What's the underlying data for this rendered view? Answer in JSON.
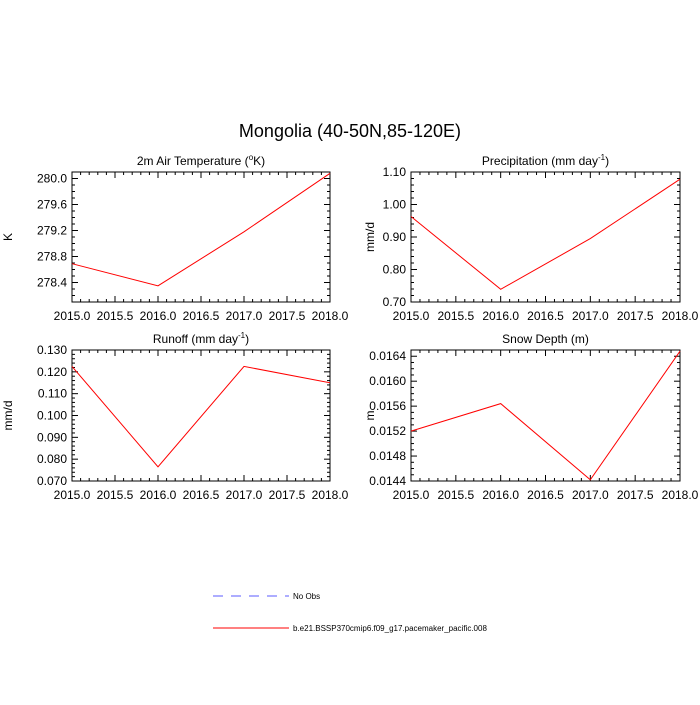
{
  "figure": {
    "title": "Mongolia (40-50N,85-120E)"
  },
  "legend": {
    "entries": [
      {
        "label": "No Obs",
        "color": "#5b5bff",
        "style": "dashed"
      },
      {
        "label": "b.e21.BSSP370cmip6.f09_g17.pacemaker_pacific.008",
        "color": "#ff0000",
        "style": "solid"
      }
    ]
  },
  "chart_data": [
    {
      "type": "line",
      "title": "2m Air Temperature (",
      "title_sup": "o",
      "title_after": "K)",
      "ylabel": "K",
      "xlim": [
        2015.0,
        2018.0
      ],
      "ylim": [
        278.1,
        280.1
      ],
      "x_major_ticks": [
        2015.0,
        2015.5,
        2016.0,
        2016.5,
        2017.0,
        2017.5,
        2018.0
      ],
      "x_tick_labels": [
        "2015.0",
        "2015.5",
        "2016.0",
        "2016.5",
        "2017.0",
        "2017.5",
        "2018.0"
      ],
      "y_major_ticks": [
        278.4,
        278.8,
        279.2,
        279.6,
        280.0
      ],
      "y_tick_labels": [
        "278.4",
        "278.8",
        "279.2",
        "279.6",
        "280.0"
      ],
      "y_minor_step": 0.1,
      "series": [
        {
          "color": "#ff0000",
          "x": [
            2015,
            2016,
            2017,
            2018
          ],
          "y": [
            278.69,
            278.35,
            279.18,
            280.08
          ]
        }
      ]
    },
    {
      "type": "line",
      "title": "Precipitation (mm day",
      "title_sup": "-1",
      "title_after": ")",
      "ylabel": "mm/d",
      "xlim": [
        2015.0,
        2018.0
      ],
      "ylim": [
        0.7,
        1.1
      ],
      "x_major_ticks": [
        2015.0,
        2015.5,
        2016.0,
        2016.5,
        2017.0,
        2017.5,
        2018.0
      ],
      "x_tick_labels": [
        "2015.0",
        "2015.5",
        "2016.0",
        "2016.5",
        "2017.0",
        "2017.5",
        "2018.0"
      ],
      "y_major_ticks": [
        0.7,
        0.8,
        0.9,
        1.0,
        1.1
      ],
      "y_tick_labels": [
        "0.70",
        "0.80",
        "0.90",
        "1.00",
        "1.10"
      ],
      "y_minor_step": 0.02,
      "series": [
        {
          "color": "#ff0000",
          "x": [
            2015,
            2016,
            2017,
            2018
          ],
          "y": [
            0.963,
            0.739,
            0.895,
            1.078
          ]
        }
      ]
    },
    {
      "type": "line",
      "title": "Runoff (mm day",
      "title_sup": "-1",
      "title_after": ")",
      "ylabel": "mm/d",
      "xlim": [
        2015.0,
        2018.0
      ],
      "ylim": [
        0.07,
        0.13
      ],
      "x_major_ticks": [
        2015.0,
        2015.5,
        2016.0,
        2016.5,
        2017.0,
        2017.5,
        2018.0
      ],
      "x_tick_labels": [
        "2015.0",
        "2015.5",
        "2016.0",
        "2016.5",
        "2017.0",
        "2017.5",
        "2018.0"
      ],
      "y_major_ticks": [
        0.07,
        0.08,
        0.09,
        0.1,
        0.11,
        0.12,
        0.13
      ],
      "y_tick_labels": [
        "0.070",
        "0.080",
        "0.090",
        "0.100",
        "0.110",
        "0.120",
        "0.130"
      ],
      "y_minor_step": 0.002,
      "series": [
        {
          "color": "#ff0000",
          "x": [
            2015,
            2016,
            2017,
            2018
          ],
          "y": [
            0.1225,
            0.0765,
            0.1225,
            0.115
          ]
        }
      ]
    },
    {
      "type": "line",
      "title": "Snow Depth (m)",
      "title_sup": "",
      "title_after": "",
      "ylabel": "m",
      "xlim": [
        2015.0,
        2018.0
      ],
      "ylim": [
        0.0144,
        0.0165
      ],
      "x_major_ticks": [
        2015.0,
        2015.5,
        2016.0,
        2016.5,
        2017.0,
        2017.5,
        2018.0
      ],
      "x_tick_labels": [
        "2015.0",
        "2015.5",
        "2016.0",
        "2016.5",
        "2017.0",
        "2017.5",
        "2018.0"
      ],
      "y_major_ticks": [
        0.0144,
        0.0148,
        0.0152,
        0.0156,
        0.016,
        0.0164
      ],
      "y_tick_labels": [
        "0.0144",
        "0.0148",
        "0.0152",
        "0.0156",
        "0.0160",
        "0.0164"
      ],
      "y_minor_step": 0.0001,
      "series": [
        {
          "color": "#ff0000",
          "x": [
            2015,
            2016,
            2017,
            2018
          ],
          "y": [
            0.0152,
            0.01564,
            0.01442,
            0.01648
          ]
        }
      ]
    }
  ]
}
